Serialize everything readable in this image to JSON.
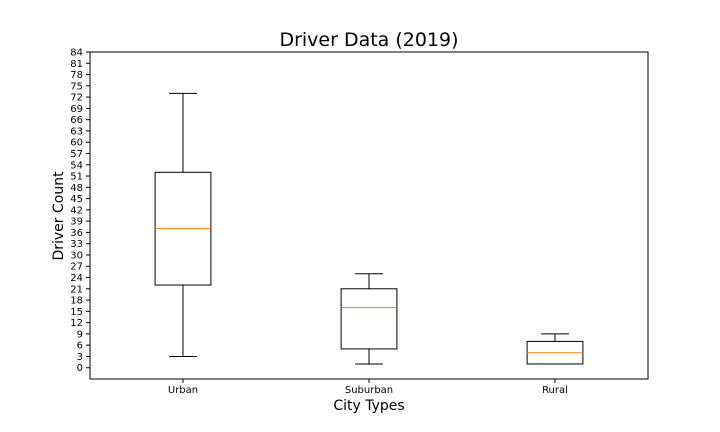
{
  "chart_data": {
    "type": "box",
    "title": "Driver Data (2019)",
    "xlabel": "City Types",
    "ylabel": "Driver Count",
    "categories": [
      "Urban",
      "Suburban",
      "Rural"
    ],
    "boxes": [
      {
        "category": "Urban",
        "whisker_low": 3,
        "q1": 22,
        "median": 37,
        "q3": 52,
        "whisker_high": 73
      },
      {
        "category": "Suburban",
        "whisker_low": 1,
        "q1": 5,
        "median": 16,
        "q3": 21,
        "whisker_high": 25
      },
      {
        "category": "Rural",
        "whisker_low": 1,
        "q1": 1,
        "median": 4,
        "q3": 7,
        "whisker_high": 9
      }
    ],
    "yticks": [
      0,
      3,
      6,
      9,
      12,
      15,
      18,
      21,
      24,
      27,
      30,
      33,
      36,
      39,
      42,
      45,
      48,
      51,
      54,
      57,
      60,
      63,
      66,
      69,
      72,
      75,
      78,
      81,
      84
    ],
    "ylim": [
      -3,
      84
    ],
    "grid": false,
    "colors": {
      "box": "#000000",
      "median": "#ff7f0e"
    }
  }
}
